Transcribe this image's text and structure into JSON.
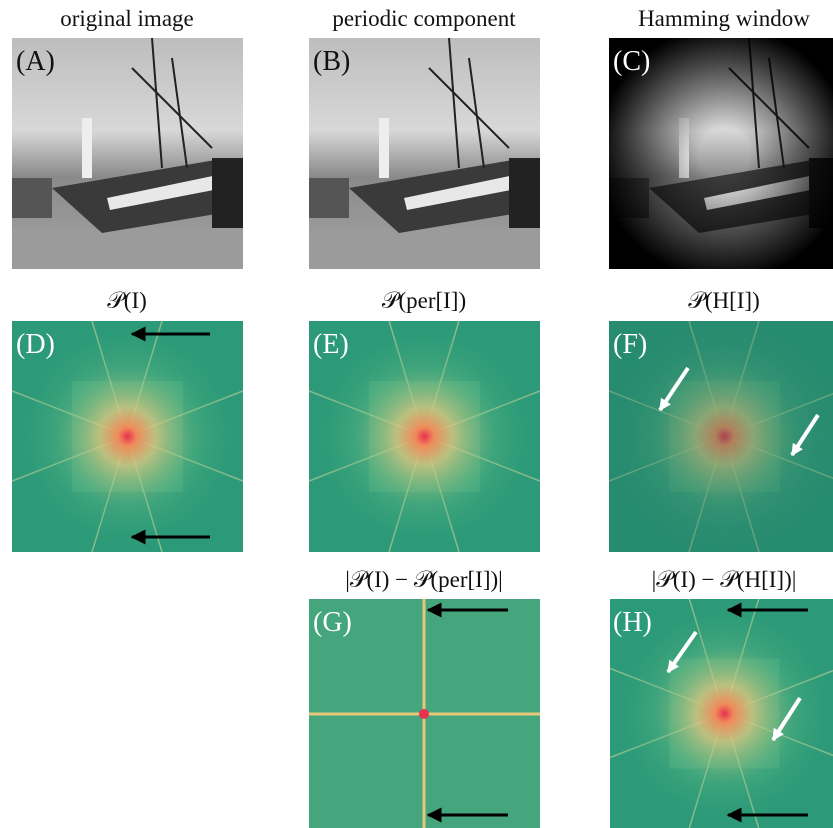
{
  "panels": [
    {
      "label": "(A)",
      "title": "original image"
    },
    {
      "label": "(B)",
      "title": "periodic component"
    },
    {
      "label": "(C)",
      "title": "Hamming window"
    },
    {
      "label": "(D)",
      "title": "𝒫(I)"
    },
    {
      "label": "(E)",
      "title": "𝒫(per[I])"
    },
    {
      "label": "(F)",
      "title": "𝒫(H[I])"
    },
    {
      "label": "(G)",
      "title": "|𝒫(I) − 𝒫(per[I])|"
    },
    {
      "label": "(H)",
      "title": "|𝒫(I) − 𝒫(H[I])|"
    }
  ]
}
